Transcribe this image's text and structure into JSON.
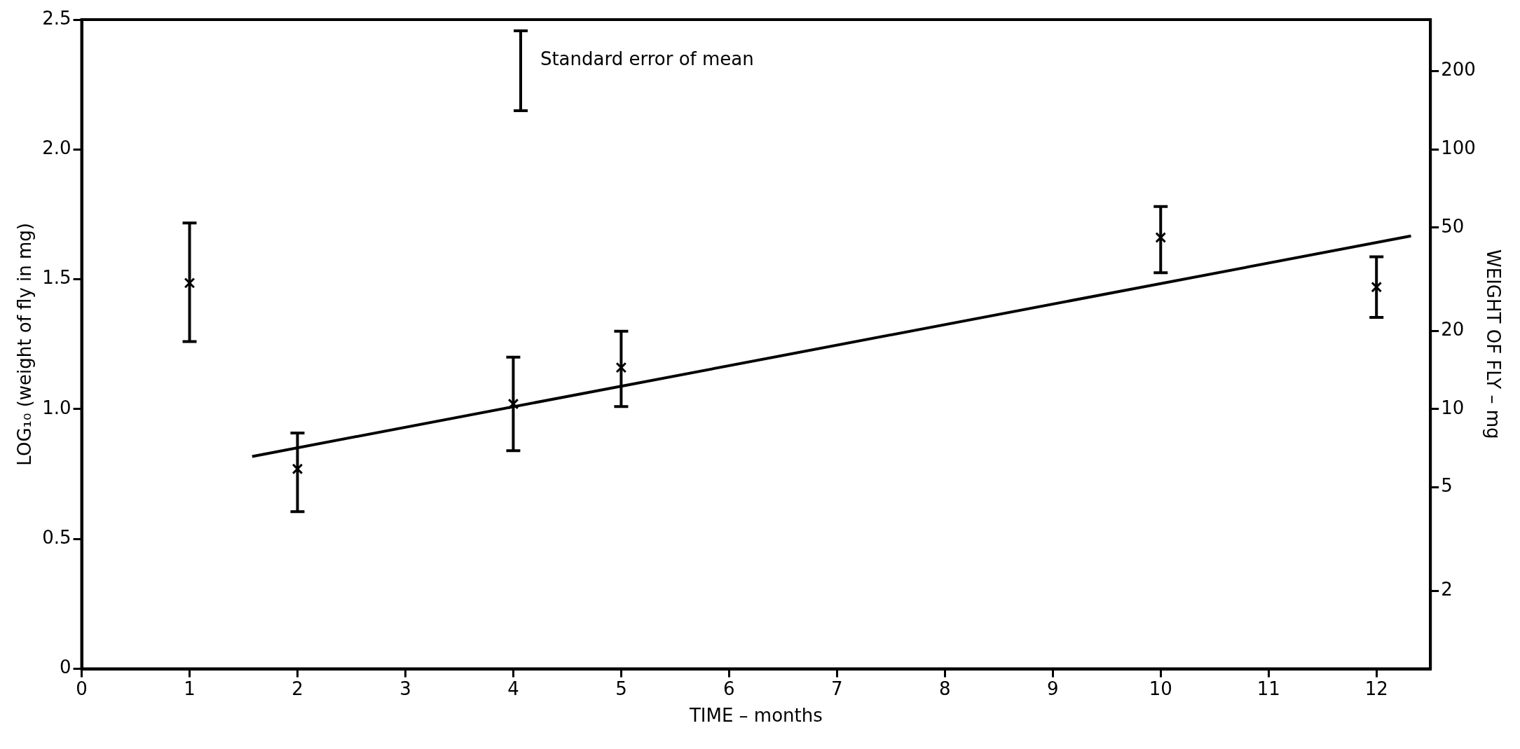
{
  "chart_data": {
    "type": "scatter",
    "xlabel": "TIME – months",
    "ylabel": "LOG₁₀ (weight of fly in mg)",
    "y2label": "WEIGHT OF FLY – mg",
    "annotations": [
      "Standard error of mean"
    ],
    "xlim": [
      0,
      12.5
    ],
    "xticks": [
      0,
      1,
      2,
      3,
      4,
      5,
      6,
      7,
      8,
      9,
      10,
      11,
      12
    ],
    "ylim": [
      0,
      2.5
    ],
    "yticks": [
      {
        "value": 0,
        "label": "0"
      },
      {
        "value": 0.5,
        "label": "0.5"
      },
      {
        "value": 1,
        "label": "1.0"
      },
      {
        "value": 1.5,
        "label": "1.5"
      },
      {
        "value": 2,
        "label": "2.0"
      },
      {
        "value": 2.5,
        "label": "2.5"
      }
    ],
    "y2lim": [
      1,
      316.2
    ],
    "y2ticks": [
      2,
      5,
      10,
      20,
      50,
      100,
      200
    ],
    "log": "y2",
    "grid": false,
    "legend": false,
    "series": [
      {
        "type": "scatter",
        "marker": "cross",
        "color": "#000000",
        "x": [
          1,
          2,
          4,
          5,
          10,
          12
        ],
        "values": [
          1.486,
          0.77,
          1.02,
          1.16,
          1.661,
          1.47
        ],
        "errors": [
          [
            1.26,
            1.717
          ],
          [
            0.605,
            0.908
          ],
          [
            0.84,
            1.2
          ],
          [
            1.01,
            1.3
          ],
          [
            1.525,
            1.78
          ],
          [
            1.353,
            1.587
          ]
        ]
      },
      {
        "type": "line",
        "marker": "none",
        "color": "#000000",
        "x": [
          1.58,
          12.32
        ],
        "values": [
          0.818,
          1.667
        ]
      }
    ]
  }
}
